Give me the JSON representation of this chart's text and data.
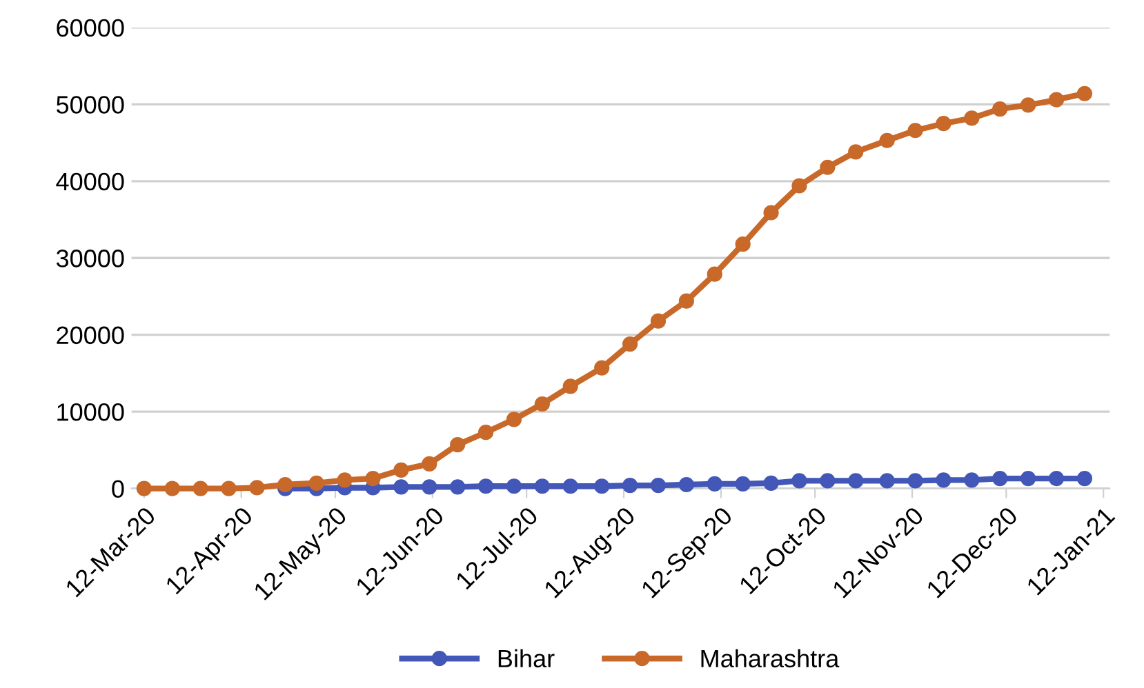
{
  "chart_data": {
    "type": "line",
    "x": [
      "2020-03-12",
      "2020-03-21",
      "2020-03-30",
      "2020-04-08",
      "2020-04-17",
      "2020-04-26",
      "2020-05-06",
      "2020-05-15",
      "2020-05-24",
      "2020-06-02",
      "2020-06-11",
      "2020-06-20",
      "2020-06-29",
      "2020-07-08",
      "2020-07-17",
      "2020-07-26",
      "2020-08-05",
      "2020-08-14",
      "2020-08-23",
      "2020-09-01",
      "2020-09-10",
      "2020-09-19",
      "2020-09-28",
      "2020-10-07",
      "2020-10-16",
      "2020-10-25",
      "2020-11-04",
      "2020-11-13",
      "2020-11-22",
      "2020-12-01",
      "2020-12-10",
      "2020-12-19",
      "2020-12-28",
      "2021-01-06"
    ],
    "series": [
      {
        "name": "Bihar",
        "color": "#4257b8",
        "values": [
          null,
          null,
          null,
          null,
          null,
          0,
          0,
          100,
          100,
          200,
          200,
          200,
          300,
          300,
          300,
          300,
          300,
          400,
          400,
          500,
          600,
          600,
          700,
          1000,
          1000,
          1000,
          1000,
          1000,
          1100,
          1100,
          1300,
          1300,
          1300,
          1300
        ]
      },
      {
        "name": "Maharashtra",
        "color": "#c8692a",
        "values": [
          0,
          0,
          0,
          0,
          100,
          500,
          700,
          1100,
          1300,
          2400,
          3200,
          5700,
          7300,
          9000,
          11000,
          13300,
          15700,
          18800,
          21800,
          24400,
          27900,
          31800,
          35900,
          39400,
          41800,
          43800,
          45300,
          46600,
          47500,
          48200,
          49400,
          49900,
          50600,
          51400
        ]
      }
    ],
    "xlim": [
      "2020-03-08",
      "2021-01-14"
    ],
    "xticks": [
      {
        "value": "2020-03-12",
        "label": "12-Mar-20"
      },
      {
        "value": "2020-04-12",
        "label": "12-Apr-20"
      },
      {
        "value": "2020-05-12",
        "label": "12-May-20"
      },
      {
        "value": "2020-06-12",
        "label": "12-Jun-20"
      },
      {
        "value": "2020-07-12",
        "label": "12-Jul-20"
      },
      {
        "value": "2020-08-12",
        "label": "12-Aug-20"
      },
      {
        "value": "2020-09-12",
        "label": "12-Sep-20"
      },
      {
        "value": "2020-10-12",
        "label": "12-Oct-20"
      },
      {
        "value": "2020-11-12",
        "label": "12-Nov-20"
      },
      {
        "value": "2020-12-12",
        "label": "12-Dec-20"
      },
      {
        "value": "2021-01-12",
        "label": "12-Jan-21"
      }
    ],
    "ylim": [
      0,
      60000
    ],
    "yticks": [
      0,
      10000,
      20000,
      30000,
      40000,
      50000,
      60000
    ],
    "grid": "y",
    "legend": "bottom",
    "marker": "circle",
    "line_style": "solid"
  }
}
